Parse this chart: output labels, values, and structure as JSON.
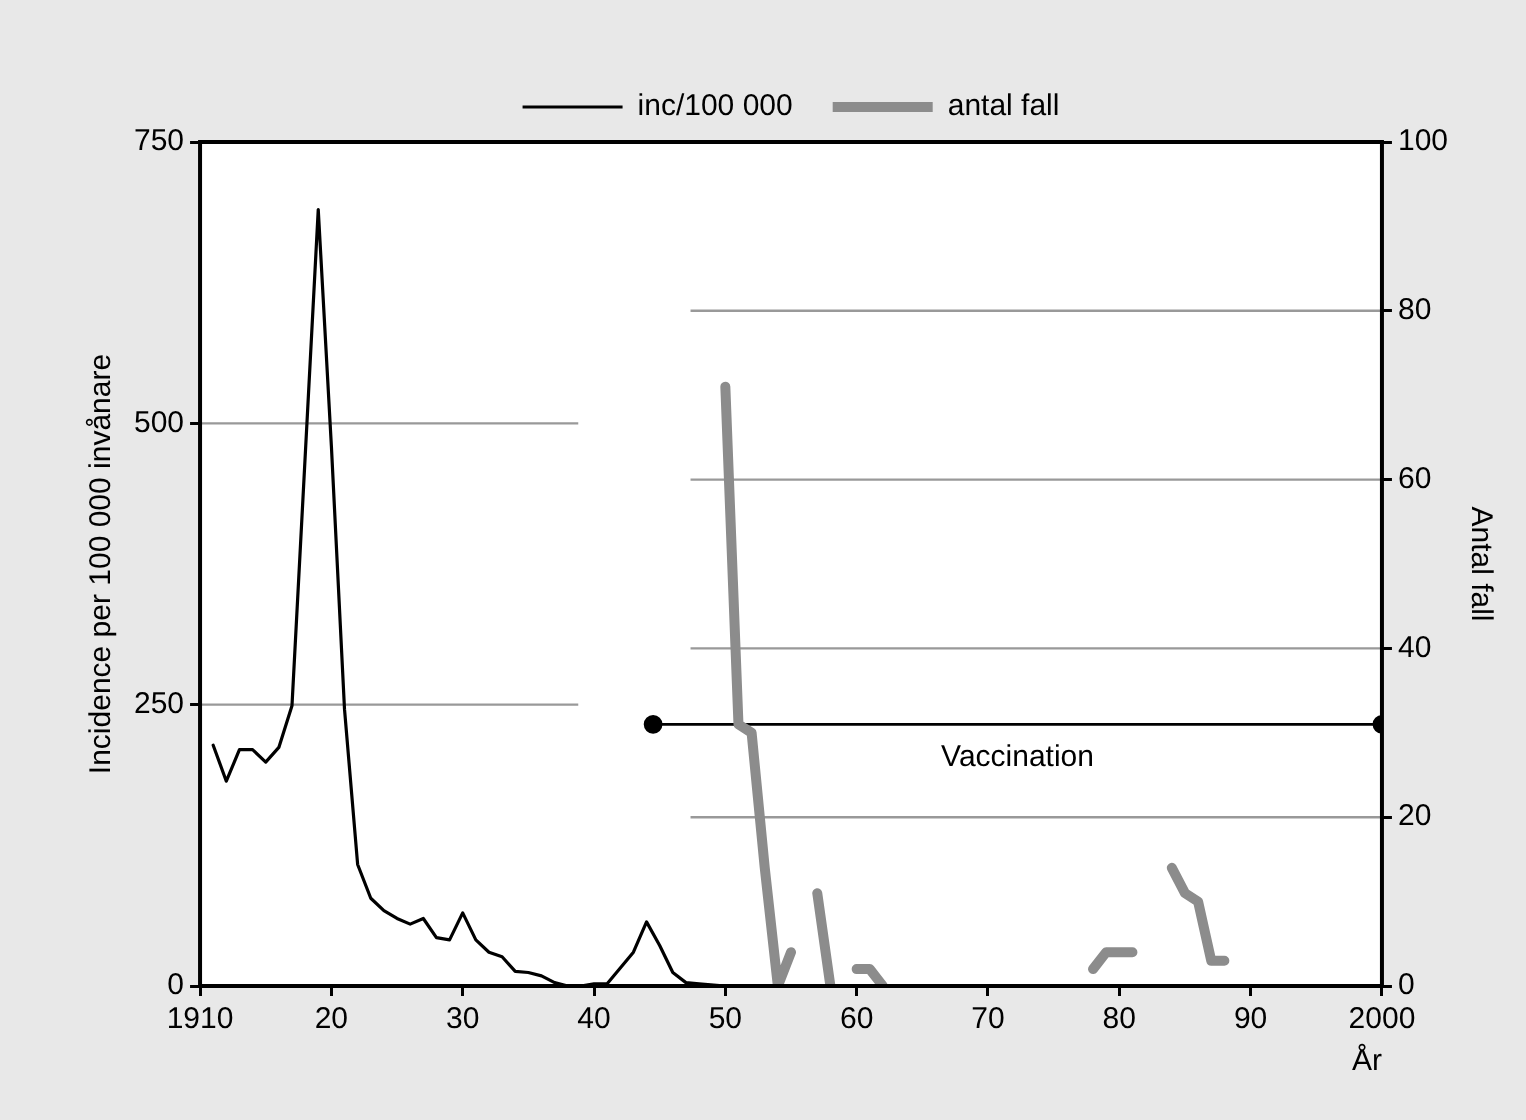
{
  "chart_data": {
    "type": "line",
    "xlabel": "År",
    "ylabel": "Incidence per 100 000 invånare",
    "y2label": "Antal fall",
    "xlim": [
      1910,
      2000
    ],
    "xticks": [
      1910,
      {
        "value": 1920,
        "label": "20"
      },
      {
        "value": 1930,
        "label": "30"
      },
      {
        "value": 1940,
        "label": "40"
      },
      {
        "value": 1950,
        "label": "50"
      },
      {
        "value": 1960,
        "label": "60"
      },
      {
        "value": 1970,
        "label": "70"
      },
      {
        "value": 1980,
        "label": "80"
      },
      {
        "value": 1990,
        "label": "90"
      },
      2000
    ],
    "ylim": [
      0,
      750
    ],
    "yticks": [
      0,
      250,
      500,
      750
    ],
    "y2lim": [
      0,
      100
    ],
    "y2ticks": [
      0,
      20,
      40,
      60,
      80,
      100
    ],
    "ref_lines": [
      {
        "axis": "y",
        "value": 250,
        "color": "#999999"
      },
      {
        "axis": "y",
        "value": 500,
        "color": "#999999"
      },
      {
        "axis": "y2",
        "value": 20,
        "color": "#999999"
      },
      {
        "axis": "y2",
        "value": 40,
        "color": "#999999"
      },
      {
        "axis": "y2",
        "value": 60,
        "color": "#999999"
      },
      {
        "axis": "y2",
        "value": 80,
        "color": "#999999"
      }
    ],
    "legend": "top",
    "marker": "none",
    "line_style": "solid",
    "series": [
      {
        "name": "inc/100 000",
        "color": "#000000",
        "x": [
          1911,
          1912,
          1913,
          1914,
          1915,
          1916,
          1917,
          1919,
          1920,
          1921,
          1922,
          1923,
          1924,
          1925,
          1926,
          1927,
          1928,
          1929,
          1930,
          1931,
          1932,
          1933,
          1934,
          1935,
          1936,
          1937,
          1938,
          1939,
          1940,
          1941,
          1943,
          1944,
          1945,
          1946,
          1947,
          1948,
          1950,
          1960,
          1970,
          1980,
          1990,
          1999
        ],
        "values": [
          214,
          182,
          210,
          210,
          199,
          212,
          249,
          690,
          480,
          246,
          108,
          78,
          67,
          60,
          55,
          60,
          43,
          41,
          65,
          41,
          30,
          26,
          13,
          12,
          9,
          3,
          0,
          0,
          2,
          2,
          30,
          57,
          36,
          12,
          3,
          2,
          0,
          0,
          0,
          0,
          0,
          0
        ]
      },
      {
        "name": "antal fall",
        "color": "#8c8c8c",
        "axis": "y2",
        "x": [
          1950,
          1951,
          1952,
          1953,
          1954,
          1955,
          1956,
          1957,
          1958,
          1959,
          1960,
          1961,
          1962,
          1970,
          1978,
          1979,
          1980,
          1981,
          1982,
          1984,
          1985,
          1986,
          1987,
          1988
        ],
        "values": [
          71,
          31,
          30,
          14,
          0,
          4,
          null,
          11,
          0,
          null,
          2,
          2,
          0,
          null,
          2,
          4,
          4,
          4,
          null,
          14,
          11,
          10,
          3,
          3
        ]
      },
      {
        "name": "Vaccination",
        "color": "#000000",
        "axis": "y2",
        "marker": "circle",
        "x": [
          1944.5,
          2000
        ],
        "values": [
          31,
          31
        ]
      }
    ]
  }
}
